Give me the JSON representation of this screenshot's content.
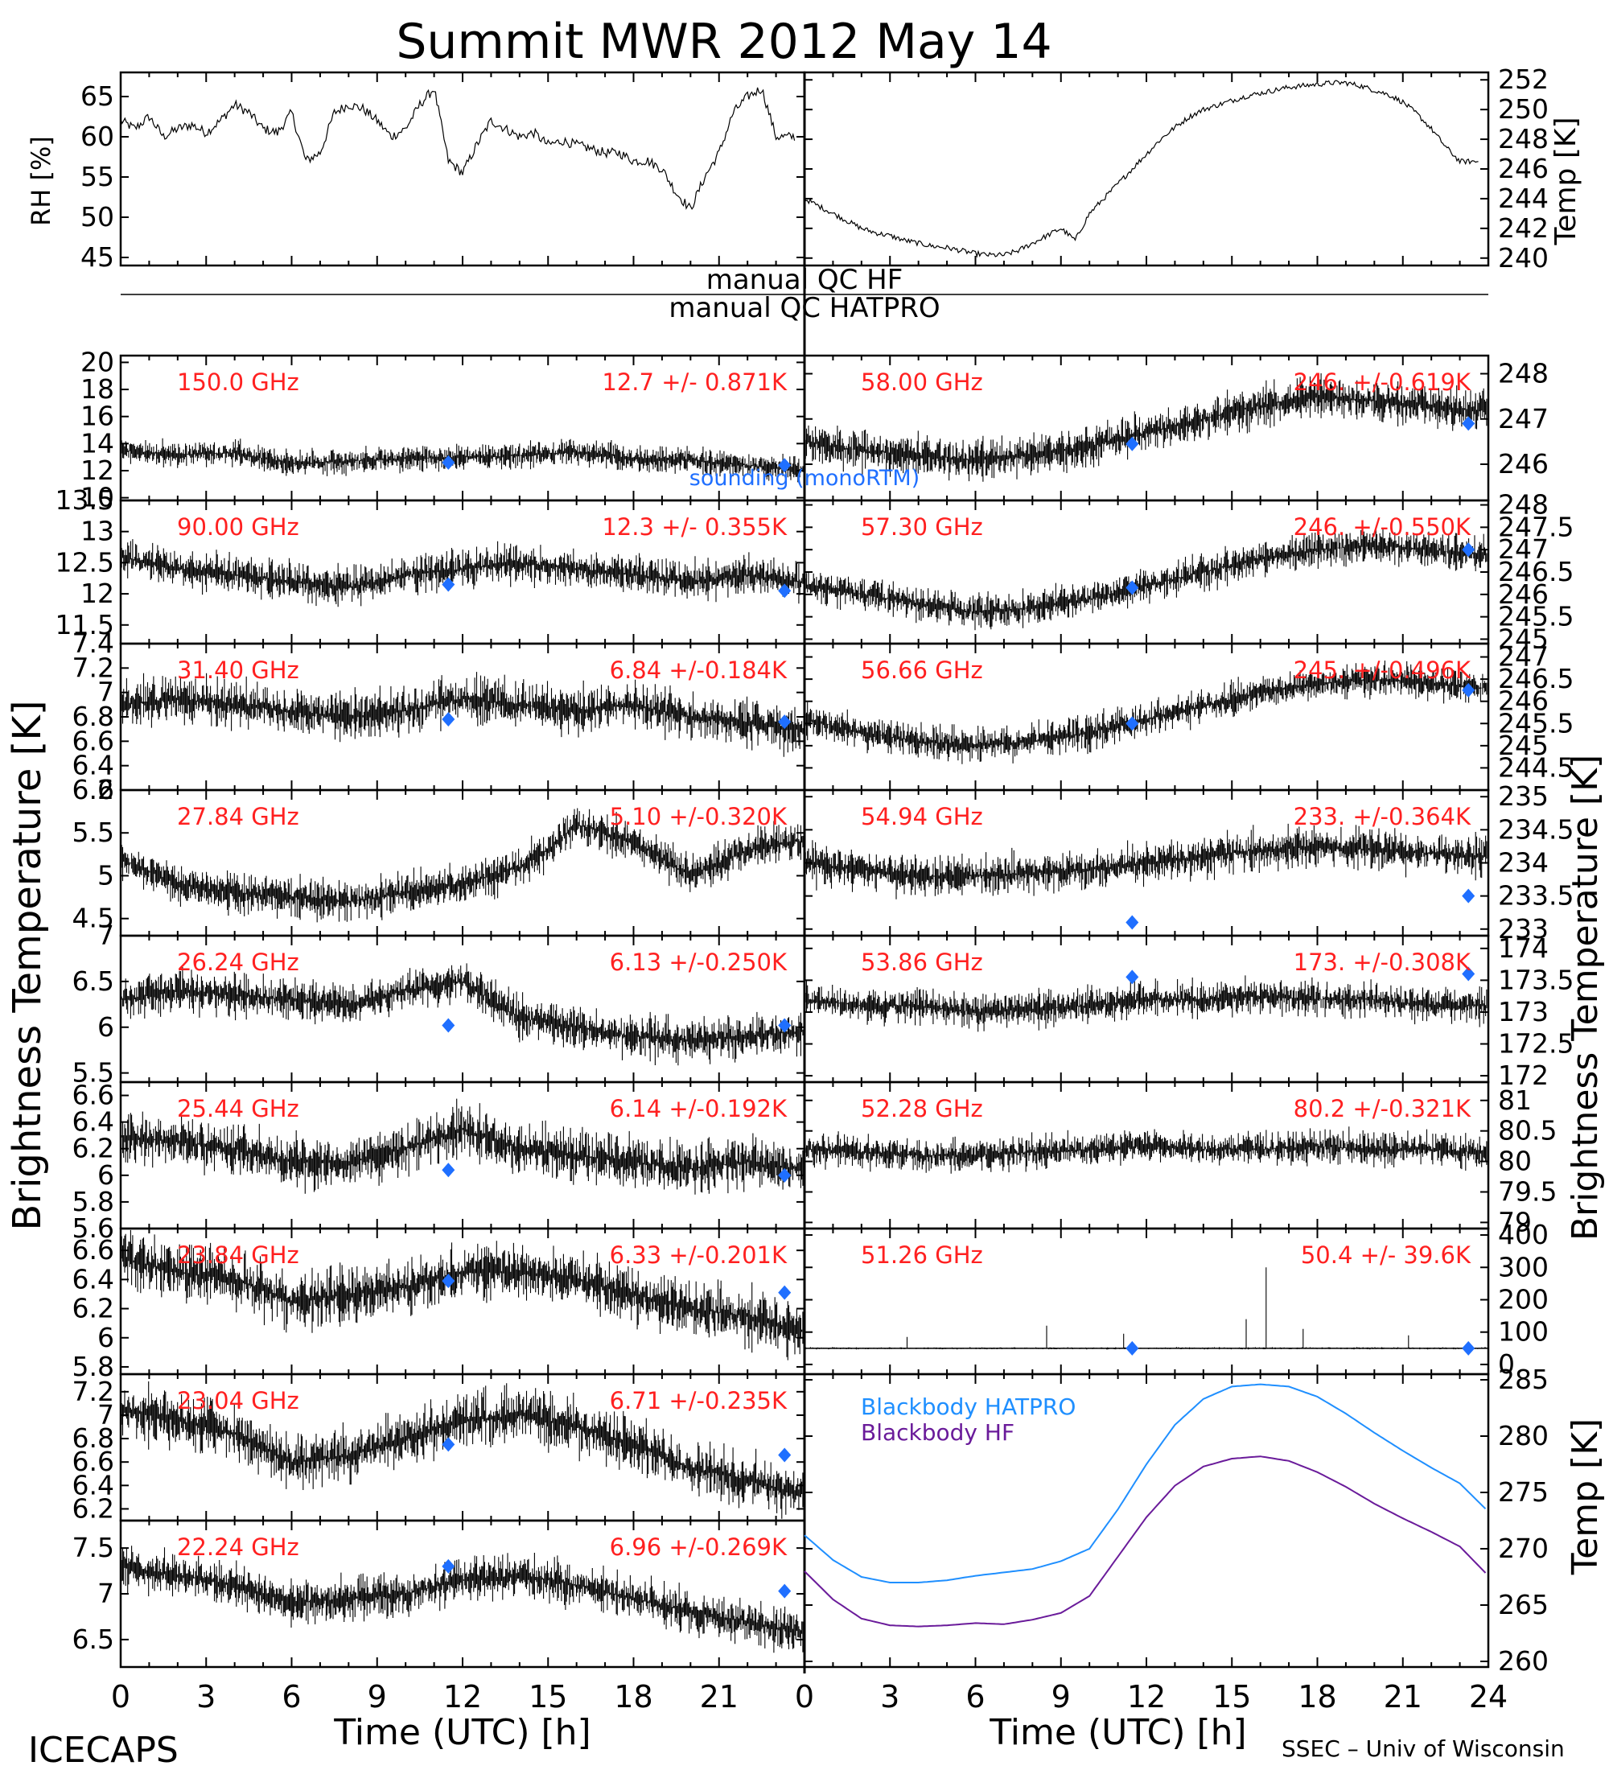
{
  "title": "Summit MWR 2012 May 14",
  "footer": {
    "left": "ICECAPS",
    "right": "SSEC – Univ of Wisconsin",
    "xlabel_left": "Time (UTC) [h]",
    "xlabel_right": "Time (UTC) [h]"
  },
  "colors": {
    "trace": "#000000",
    "label_red": "#ff2020",
    "sounding_blue": "#1f6fff",
    "blackbody_hatpro": "#1f8fff",
    "blackbody_hf": "#6a1b9a"
  },
  "qc": {
    "hf": "manual QC HF",
    "hatpro": "manual QC HATPRO"
  },
  "axis_titles": {
    "left_bt": "Brightness Temperature [K]",
    "right_bt": "Brightness Temperature [K]",
    "rh": "RH [%]",
    "temp_top": "Temp [K]",
    "temp_bb": "Temp [K]"
  },
  "x_ticks": [
    "0",
    "3",
    "6",
    "9",
    "12",
    "15",
    "18",
    "21",
    "24"
  ],
  "sounding_label": "sounding (monoRTM)",
  "chart_data": [
    {
      "type": "line",
      "id": "rh",
      "x": [
        0,
        0.5,
        1,
        1.5,
        2,
        2.5,
        3,
        3.5,
        4,
        4.5,
        5,
        5.5,
        6,
        6.5,
        7,
        7.5,
        8,
        8.5,
        9,
        9.5,
        10,
        10.5,
        11,
        11.5,
        12,
        12.5,
        13,
        13.5,
        14,
        14.5,
        15,
        15.5,
        16,
        16.5,
        17,
        17.5,
        18,
        18.5,
        19,
        19.5,
        20,
        20.5,
        21,
        21.5,
        22,
        22.5,
        23
      ],
      "y": [
        62,
        61,
        62.5,
        60,
        61,
        61.5,
        60.5,
        62,
        64,
        63,
        61,
        60.5,
        63,
        57,
        58,
        63,
        64,
        63.5,
        62,
        60,
        61,
        64,
        66,
        57,
        55.5,
        59,
        62,
        61,
        60,
        60.5,
        59,
        59.5,
        59,
        58.5,
        58,
        58,
        57,
        57,
        56,
        53,
        51,
        55,
        58,
        63,
        65,
        66,
        60
      ],
      "ylim": [
        44,
        68
      ],
      "yticks": [
        45,
        50,
        55,
        60,
        65
      ],
      "xlim": [
        0,
        24
      ]
    },
    {
      "type": "line",
      "id": "temp_top",
      "x": [
        0,
        0.5,
        1,
        1.5,
        2,
        2.5,
        3,
        3.5,
        4,
        4.5,
        5,
        5.5,
        6,
        6.5,
        7,
        7.5,
        8,
        8.5,
        9,
        9.5,
        10,
        10.5,
        11,
        11.5,
        12,
        12.5,
        13,
        13.5,
        14,
        14.5,
        15,
        15.5,
        16,
        16.5,
        17,
        17.5,
        18,
        18.5,
        19,
        19.5,
        20,
        20.5,
        21,
        21.5,
        22,
        22.5,
        23
      ],
      "y": [
        244,
        243.5,
        243,
        242.5,
        242,
        241.7,
        241.5,
        241.2,
        241,
        240.8,
        240.7,
        240.5,
        240.3,
        240.2,
        240.2,
        240.5,
        241,
        241.5,
        242,
        241.2,
        243,
        244,
        245,
        246,
        247,
        248,
        248.8,
        249.5,
        250,
        250.3,
        250.6,
        250.9,
        251.1,
        251.3,
        251.5,
        251.6,
        251.7,
        251.8,
        251.8,
        251.6,
        251.3,
        251,
        250.5,
        249.7,
        248.7,
        247.5,
        246.5
      ],
      "ylim": [
        239.5,
        252.5
      ],
      "yticks": [
        240,
        242,
        244,
        246,
        248,
        250,
        252
      ],
      "xlim": [
        0,
        24
      ]
    },
    {
      "type": "scatter",
      "side": "left",
      "freq": "150.0 GHz",
      "stat": "12.7 +/- 0.871K",
      "ylim": [
        9.8,
        20.5
      ],
      "yticks": [
        10,
        12,
        14,
        16,
        18,
        20
      ],
      "x": [
        0,
        2,
        4,
        6,
        8,
        10,
        12,
        14,
        16,
        18,
        20,
        22,
        23.5
      ],
      "y": [
        13.5,
        13.2,
        13.3,
        12.5,
        12.7,
        12.9,
        13.0,
        13.1,
        13.4,
        12.9,
        12.8,
        12.4,
        12.1
      ],
      "noise": 1.2,
      "sounding": [
        [
          11.5,
          12.6
        ],
        [
          23.3,
          12.4
        ]
      ]
    },
    {
      "type": "scatter",
      "side": "left",
      "freq": "90.00 GHz",
      "stat": "12.3 +/- 0.355K",
      "ylim": [
        11.2,
        13.5
      ],
      "yticks": [
        11.5,
        12.0,
        12.5,
        13.0,
        13.5
      ],
      "x": [
        0,
        2,
        4,
        6,
        8,
        10,
        12,
        14,
        16,
        18,
        20,
        22,
        23.5
      ],
      "y": [
        12.6,
        12.4,
        12.3,
        12.2,
        12.1,
        12.3,
        12.4,
        12.5,
        12.4,
        12.3,
        12.2,
        12.3,
        12.2
      ],
      "noise": 0.4,
      "sounding": [
        [
          11.5,
          12.15
        ],
        [
          23.3,
          12.05
        ]
      ]
    },
    {
      "type": "scatter",
      "side": "left",
      "freq": "31.40 GHz",
      "stat": "6.84 +/-0.184K",
      "ylim": [
        6.2,
        7.4
      ],
      "yticks": [
        6.2,
        6.4,
        6.6,
        6.8,
        7.0,
        7.2,
        7.4
      ],
      "x": [
        0,
        2,
        4,
        6,
        8,
        10,
        12,
        14,
        16,
        18,
        20,
        22,
        23.5
      ],
      "y": [
        6.9,
        6.95,
        6.9,
        6.85,
        6.8,
        6.85,
        6.95,
        6.9,
        6.85,
        6.9,
        6.8,
        6.75,
        6.7
      ],
      "noise": 0.25,
      "sounding": [
        [
          11.5,
          6.78
        ],
        [
          23.3,
          6.76
        ]
      ]
    },
    {
      "type": "scatter",
      "side": "left",
      "freq": "27.84 GHz",
      "stat": "5.10 +/-0.320K",
      "ylim": [
        4.3,
        6.0
      ],
      "yticks": [
        4.5,
        5.0,
        5.5,
        6.0
      ],
      "x": [
        0,
        2,
        4,
        6,
        8,
        10,
        12,
        14,
        15,
        16,
        17,
        18,
        20,
        22,
        23.5
      ],
      "y": [
        5.2,
        4.9,
        4.8,
        4.75,
        4.7,
        4.8,
        4.9,
        5.1,
        5.3,
        5.6,
        5.5,
        5.4,
        5.0,
        5.3,
        5.4
      ],
      "noise": 0.3,
      "sounding": []
    },
    {
      "type": "scatter",
      "side": "left",
      "freq": "26.24 GHz",
      "stat": "6.13 +/-0.250K",
      "ylim": [
        5.4,
        7.0
      ],
      "yticks": [
        5.5,
        6.0,
        6.5,
        7.0
      ],
      "x": [
        0,
        2,
        4,
        6,
        8,
        10,
        12,
        14,
        16,
        18,
        20,
        22,
        23.5
      ],
      "y": [
        6.3,
        6.4,
        6.35,
        6.3,
        6.25,
        6.4,
        6.5,
        6.1,
        6.0,
        5.9,
        5.85,
        5.9,
        5.95
      ],
      "noise": 0.3,
      "sounding": [
        [
          11.5,
          6.02
        ],
        [
          23.3,
          6.02
        ]
      ]
    },
    {
      "type": "scatter",
      "side": "left",
      "freq": "25.44 GHz",
      "stat": "6.14 +/-0.192K",
      "ylim": [
        5.6,
        6.7
      ],
      "yticks": [
        5.6,
        5.8,
        6.0,
        6.2,
        6.4,
        6.6
      ],
      "x": [
        0,
        2,
        4,
        6,
        8,
        10,
        12,
        14,
        16,
        18,
        20,
        22,
        23.5
      ],
      "y": [
        6.3,
        6.25,
        6.2,
        6.1,
        6.1,
        6.2,
        6.35,
        6.2,
        6.15,
        6.1,
        6.05,
        6.1,
        6.05
      ],
      "noise": 0.25,
      "sounding": [
        [
          11.5,
          6.04
        ],
        [
          23.3,
          6.0
        ]
      ]
    },
    {
      "type": "scatter",
      "side": "left",
      "freq": "23.84 GHz",
      "stat": "6.33 +/-0.201K",
      "ylim": [
        5.75,
        6.75
      ],
      "yticks": [
        5.8,
        6.0,
        6.2,
        6.4,
        6.6
      ],
      "x": [
        0,
        2,
        4,
        6,
        8,
        10,
        12,
        14,
        16,
        18,
        20,
        22,
        23.5
      ],
      "y": [
        6.55,
        6.45,
        6.4,
        6.25,
        6.3,
        6.35,
        6.45,
        6.45,
        6.4,
        6.3,
        6.2,
        6.15,
        6.05
      ],
      "noise": 0.25,
      "sounding": [
        [
          11.5,
          6.39
        ],
        [
          23.3,
          6.31
        ]
      ]
    },
    {
      "type": "scatter",
      "side": "left",
      "freq": "23.04 GHz",
      "stat": "6.71 +/-0.235K",
      "ylim": [
        6.1,
        7.35
      ],
      "yticks": [
        6.2,
        6.4,
        6.6,
        6.8,
        7.0,
        7.2
      ],
      "x": [
        0,
        2,
        4,
        6,
        8,
        10,
        12,
        14,
        16,
        18,
        20,
        22,
        23.5
      ],
      "y": [
        7.05,
        6.95,
        6.85,
        6.6,
        6.65,
        6.8,
        6.95,
        7.0,
        6.9,
        6.75,
        6.55,
        6.45,
        6.35
      ],
      "noise": 0.3,
      "sounding": [
        [
          11.5,
          6.75
        ],
        [
          23.3,
          6.66
        ]
      ]
    },
    {
      "type": "scatter",
      "side": "left",
      "freq": "22.24 GHz",
      "stat": "6.96 +/-0.269K",
      "ylim": [
        6.2,
        7.8
      ],
      "yticks": [
        6.5,
        7.0,
        7.5
      ],
      "x": [
        0,
        2,
        4,
        6,
        8,
        10,
        12,
        14,
        16,
        18,
        20,
        22,
        23.5
      ],
      "y": [
        7.3,
        7.2,
        7.1,
        6.9,
        6.95,
        7.0,
        7.15,
        7.2,
        7.1,
        6.95,
        6.8,
        6.7,
        6.6
      ],
      "noise": 0.3,
      "sounding": [
        [
          11.5,
          7.3
        ],
        [
          23.3,
          7.03
        ]
      ]
    },
    {
      "type": "scatter",
      "side": "right",
      "freq": "58.00 GHz",
      "stat": "246. +/-0.619K",
      "ylim": [
        245.2,
        248.4
      ],
      "yticks": [
        246,
        247,
        248
      ],
      "x": [
        0,
        2,
        4,
        6,
        8,
        10,
        12,
        14,
        16,
        18,
        20,
        22,
        23.5
      ],
      "y": [
        246.5,
        246.3,
        246.2,
        246.1,
        246.2,
        246.4,
        246.7,
        247.0,
        247.3,
        247.5,
        247.4,
        247.3,
        247.2
      ],
      "noise": 0.6,
      "sounding": [
        [
          11.5,
          246.45
        ],
        [
          23.3,
          246.9
        ]
      ]
    },
    {
      "type": "scatter",
      "side": "right",
      "freq": "57.30 GHz",
      "stat": "246. +/-0.550K",
      "ylim": [
        244.9,
        248.1
      ],
      "yticks": [
        245.0,
        245.5,
        246.0,
        246.5,
        247.0,
        247.5,
        248.0
      ],
      "x": [
        0,
        2,
        4,
        6,
        8,
        10,
        12,
        14,
        16,
        18,
        20,
        22,
        23.5
      ],
      "y": [
        246.2,
        246.0,
        245.8,
        245.6,
        245.7,
        245.9,
        246.2,
        246.5,
        246.8,
        247.0,
        247.1,
        247.0,
        246.9
      ],
      "noise": 0.5,
      "sounding": [
        [
          11.5,
          246.15
        ],
        [
          23.3,
          247.0
        ]
      ]
    },
    {
      "type": "scatter",
      "side": "right",
      "freq": "56.66 GHz",
      "stat": "245. +/-0.496K",
      "ylim": [
        244.0,
        247.3
      ],
      "yticks": [
        244.5,
        245.0,
        245.5,
        246.0,
        246.5,
        247.0
      ],
      "x": [
        0,
        2,
        4,
        6,
        8,
        10,
        12,
        14,
        16,
        18,
        20,
        22,
        23.5
      ],
      "y": [
        245.6,
        245.3,
        245.1,
        245.0,
        245.1,
        245.3,
        245.6,
        245.9,
        246.2,
        246.4,
        246.5,
        246.4,
        246.3
      ],
      "noise": 0.5,
      "sounding": [
        [
          11.5,
          245.5
        ],
        [
          23.3,
          246.25
        ]
      ]
    },
    {
      "type": "scatter",
      "side": "right",
      "freq": "54.94 GHz",
      "stat": "233. +/-0.364K",
      "ylim": [
        232.9,
        235.1
      ],
      "yticks": [
        233.0,
        233.5,
        234.0,
        234.5,
        235.0
      ],
      "x": [
        0,
        2,
        4,
        6,
        8,
        10,
        12,
        14,
        16,
        18,
        20,
        22,
        23.5
      ],
      "y": [
        234.0,
        233.9,
        233.8,
        233.8,
        233.85,
        233.9,
        234.0,
        234.1,
        234.2,
        234.25,
        234.2,
        234.15,
        234.1
      ],
      "noise": 0.4,
      "sounding": [
        [
          11.5,
          233.1
        ],
        [
          23.3,
          233.5
        ]
      ]
    },
    {
      "type": "scatter",
      "side": "right",
      "freq": "53.86 GHz",
      "stat": "173. +/-0.308K",
      "ylim": [
        171.9,
        174.2
      ],
      "yticks": [
        172.0,
        172.5,
        173.0,
        173.5,
        174.0
      ],
      "x": [
        0,
        2,
        4,
        6,
        8,
        10,
        12,
        14,
        16,
        18,
        20,
        22,
        23.5
      ],
      "y": [
        173.2,
        173.1,
        173.1,
        173.0,
        173.05,
        173.1,
        173.2,
        173.2,
        173.25,
        173.2,
        173.2,
        173.1,
        173.1
      ],
      "noise": 0.35,
      "sounding": [
        [
          11.5,
          173.55
        ],
        [
          23.3,
          173.6
        ]
      ]
    },
    {
      "type": "scatter",
      "side": "right",
      "freq": "52.28 GHz",
      "stat": "80.2 +/-0.321K",
      "ylim": [
        78.9,
        81.3
      ],
      "yticks": [
        79.0,
        79.5,
        80.0,
        80.5,
        81.0
      ],
      "x": [
        0,
        2,
        4,
        6,
        8,
        10,
        12,
        14,
        16,
        18,
        20,
        22,
        23.5
      ],
      "y": [
        80.2,
        80.15,
        80.1,
        80.1,
        80.15,
        80.2,
        80.25,
        80.2,
        80.2,
        80.25,
        80.2,
        80.2,
        80.15
      ],
      "noise": 0.35,
      "sounding": []
    },
    {
      "type": "scatter",
      "side": "right",
      "freq": "51.26 GHz",
      "stat": "50.4 +/- 39.6K",
      "ylim": [
        -30,
        420
      ],
      "yticks": [
        0,
        100,
        200,
        300,
        400
      ],
      "x": [
        0,
        4,
        8,
        12,
        16,
        20,
        23.5
      ],
      "y": [
        50,
        50,
        50,
        50,
        50,
        50,
        50
      ],
      "noise": 4,
      "sounding": [
        [
          11.5,
          50
        ],
        [
          23.3,
          50
        ]
      ]
    },
    {
      "type": "line",
      "id": "blackbody",
      "xlim": [
        0,
        24
      ],
      "ylim": [
        259.5,
        285.5
      ],
      "yticks": [
        260,
        265,
        270,
        275,
        280,
        285
      ],
      "legend": [
        "Blackbody HATPRO",
        "Blackbody HF"
      ],
      "x": [
        0,
        1,
        2,
        3,
        4,
        5,
        6,
        7,
        8,
        9,
        10,
        11,
        12,
        13,
        14,
        15,
        16,
        17,
        18,
        19,
        20,
        21,
        22,
        23,
        24
      ],
      "series": [
        {
          "name": "Blackbody HATPRO",
          "values": [
            271.2,
            269.0,
            267.5,
            267.0,
            267.0,
            267.2,
            267.6,
            267.9,
            268.2,
            268.9,
            270.0,
            273.5,
            277.5,
            281.0,
            283.3,
            284.4,
            284.6,
            284.4,
            283.5,
            282.0,
            280.3,
            278.7,
            277.2,
            275.8,
            273.3
          ]
        },
        {
          "name": "Blackbody HF",
          "values": [
            268.0,
            265.5,
            263.8,
            263.2,
            263.1,
            263.2,
            263.4,
            263.3,
            263.7,
            264.3,
            265.8,
            269.3,
            272.8,
            275.6,
            277.3,
            278.0,
            278.2,
            277.8,
            276.8,
            275.5,
            274.0,
            272.7,
            271.5,
            270.2,
            267.6
          ]
        }
      ]
    }
  ]
}
